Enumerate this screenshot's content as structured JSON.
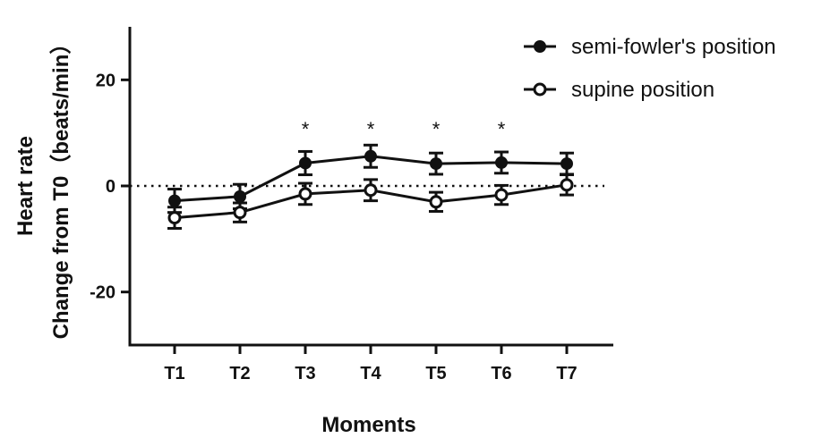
{
  "chart_data": {
    "type": "line",
    "categories": [
      "T1",
      "T2",
      "T3",
      "T4",
      "T5",
      "T6",
      "T7"
    ],
    "series": [
      {
        "name": "semi-fowler's position",
        "marker": "filled-circle",
        "values": [
          -2.8,
          -2.0,
          4.3,
          5.6,
          4.2,
          4.4,
          4.2
        ],
        "error": [
          2.2,
          2.3,
          2.2,
          2.1,
          2.0,
          2.0,
          2.0
        ]
      },
      {
        "name": "supine position",
        "marker": "open-circle",
        "values": [
          -6.0,
          -5.0,
          -1.5,
          -0.8,
          -3.0,
          -1.7,
          0.2
        ],
        "error": [
          2.0,
          1.8,
          2.0,
          2.0,
          1.8,
          1.8,
          1.9
        ]
      }
    ],
    "significance": [
      "",
      "",
      "*",
      "*",
      "*",
      "*",
      ""
    ],
    "reference_line": {
      "y": 0,
      "style": "dotted"
    },
    "xlabel": "Moments",
    "ylabel_line1": "Heart rate",
    "ylabel_line2": "Change from T0（beats/min）",
    "yticks": [
      20,
      0,
      -20
    ],
    "ytick_labels": [
      "20",
      "0",
      "-20"
    ],
    "ylim": [
      -30,
      30
    ],
    "grid": false,
    "legend_position": "top-right",
    "color": "#111111"
  }
}
